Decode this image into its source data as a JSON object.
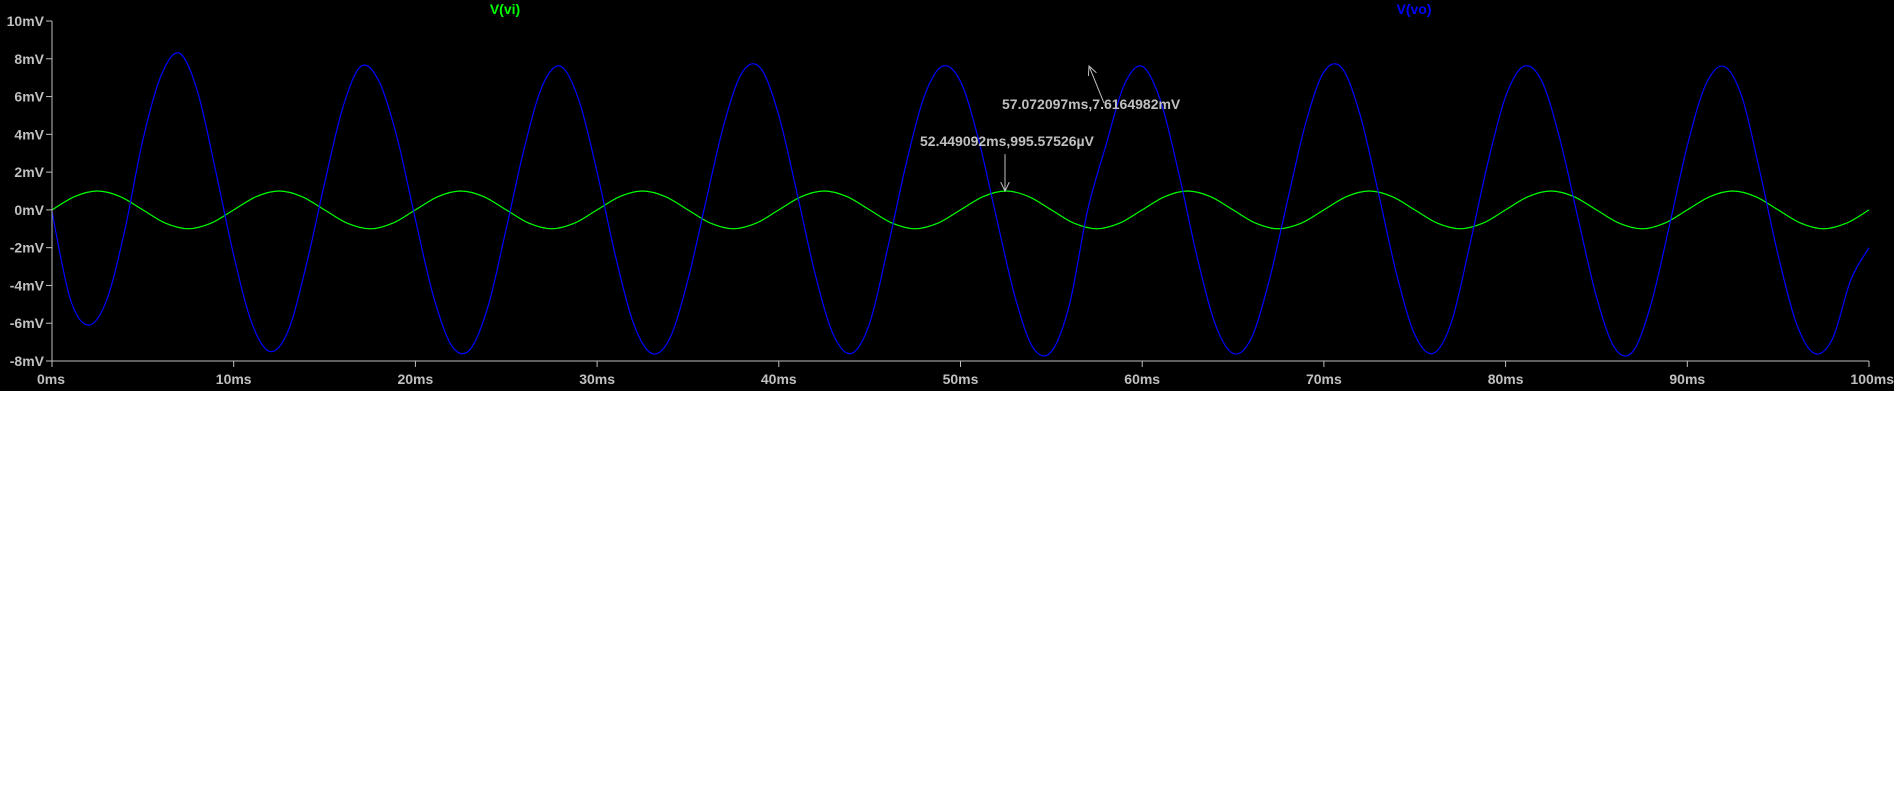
{
  "window": {
    "background": "#000000",
    "below_plot_background": "#ffffff"
  },
  "chart_data": {
    "type": "line",
    "title": "",
    "xlabel": "",
    "ylabel": "",
    "x_unit": "ms",
    "y_unit": "mV",
    "xlim": [
      0,
      100
    ],
    "ylim": [
      -8,
      10
    ],
    "grid": false,
    "axis_color": "#c0c0c0",
    "tick_label_color": "#c0c0c0",
    "x_ticks": [
      {
        "value": 0,
        "label": "0ms"
      },
      {
        "value": 10,
        "label": "10ms"
      },
      {
        "value": 20,
        "label": "20ms"
      },
      {
        "value": 30,
        "label": "30ms"
      },
      {
        "value": 40,
        "label": "40ms"
      },
      {
        "value": 50,
        "label": "50ms"
      },
      {
        "value": 60,
        "label": "60ms"
      },
      {
        "value": 70,
        "label": "70ms"
      },
      {
        "value": 80,
        "label": "80ms"
      },
      {
        "value": 90,
        "label": "90ms"
      },
      {
        "value": 100,
        "label": "100ms"
      }
    ],
    "y_ticks": [
      {
        "value": 10,
        "label": "10mV"
      },
      {
        "value": 8,
        "label": "8mV"
      },
      {
        "value": 6,
        "label": "6mV"
      },
      {
        "value": 4,
        "label": "4mV"
      },
      {
        "value": 2,
        "label": "2mV"
      },
      {
        "value": 0,
        "label": "0mV"
      },
      {
        "value": -2,
        "label": "-2mV"
      },
      {
        "value": -4,
        "label": "-4mV"
      },
      {
        "value": -6,
        "label": "-6mV"
      },
      {
        "value": -8,
        "label": "-8mV"
      }
    ],
    "legend": "top",
    "series": [
      {
        "name": "V(vi)",
        "color": "#00ff00",
        "x": [
          0,
          1.25,
          2.5,
          3.75,
          5,
          6.25,
          7.5,
          8.75,
          10,
          11.25,
          12.5,
          13.75,
          15,
          16.25,
          17.5,
          18.75,
          20,
          21.25,
          22.5,
          23.75,
          25,
          26.25,
          27.5,
          28.75,
          30,
          31.25,
          32.5,
          33.75,
          35,
          36.25,
          37.5,
          38.75,
          40,
          41.25,
          42.5,
          43.75,
          45,
          46.25,
          47.5,
          48.75,
          50,
          51.25,
          52.5,
          53.75,
          55,
          56.25,
          57.5,
          58.75,
          60,
          61.25,
          62.5,
          63.75,
          65,
          66.25,
          67.5,
          68.75,
          70,
          71.25,
          72.5,
          73.75,
          75,
          76.25,
          77.5,
          78.75,
          80,
          81.25,
          82.5,
          83.75,
          85,
          86.25,
          87.5,
          88.75,
          90,
          91.25,
          92.5,
          93.75,
          95,
          96.25,
          97.5,
          98.75,
          100
        ],
        "y": [
          0,
          0.707,
          1.0,
          0.707,
          0,
          -0.707,
          -1.0,
          -0.707,
          0,
          0.707,
          1.0,
          0.707,
          0,
          -0.707,
          -1.0,
          -0.707,
          0,
          0.707,
          1.0,
          0.707,
          0,
          -0.707,
          -1.0,
          -0.707,
          0,
          0.707,
          1.0,
          0.707,
          0,
          -0.707,
          -1.0,
          -0.707,
          0,
          0.707,
          1.0,
          0.707,
          0,
          -0.707,
          -1.0,
          -0.707,
          0,
          0.707,
          1.0,
          0.707,
          0,
          -0.707,
          -1.0,
          -0.707,
          0,
          0.707,
          1.0,
          0.707,
          0,
          -0.707,
          -1.0,
          -0.707,
          0,
          0.707,
          1.0,
          0.707,
          0,
          -0.707,
          -1.0,
          -0.707,
          0,
          0.707,
          1.0,
          0.707,
          0,
          -0.707,
          -1.0,
          -0.707,
          0,
          0.707,
          1.0,
          0.707,
          0,
          -0.707,
          -1.0,
          -0.707,
          0
        ]
      },
      {
        "name": "V(vo)",
        "color": "#0000ff",
        "x": [
          0,
          1,
          2,
          3,
          4,
          5,
          6,
          7,
          8,
          9,
          10,
          11,
          12,
          13,
          14,
          15,
          16,
          17,
          18,
          19,
          20,
          21,
          22,
          23,
          24,
          25,
          26,
          27,
          28,
          29,
          30,
          31,
          32,
          33,
          34,
          35,
          36,
          37,
          38,
          39,
          40,
          41,
          42,
          43,
          44,
          45,
          46,
          47,
          48,
          49,
          50,
          51,
          52,
          53,
          54,
          55,
          56,
          57,
          58,
          59,
          60,
          61,
          62,
          63,
          64,
          65,
          66,
          67,
          68,
          69,
          70,
          71,
          72,
          73,
          74,
          75,
          76,
          77,
          78,
          79,
          80,
          81,
          82,
          83,
          84,
          85,
          86,
          87,
          88,
          89,
          90,
          91,
          92,
          93,
          94,
          95,
          96,
          97,
          98,
          99,
          100
        ],
        "y": [
          -0.1,
          -4.7,
          -6.1,
          -4.8,
          -1.1,
          3.7,
          7.1,
          8.3,
          6.3,
          2.1,
          -2.4,
          -6.0,
          -7.5,
          -6.4,
          -2.9,
          1.4,
          5.4,
          7.6,
          6.8,
          3.8,
          -0.5,
          -4.6,
          -7.2,
          -7.4,
          -5.1,
          -1.0,
          3.3,
          6.6,
          7.6,
          5.8,
          2.0,
          -2.4,
          -6.0,
          -7.6,
          -6.8,
          -3.7,
          0.5,
          4.6,
          7.3,
          7.5,
          5.0,
          0.9,
          -3.4,
          -6.6,
          -7.6,
          -6.0,
          -2.0,
          2.4,
          6.0,
          7.6,
          6.8,
          3.7,
          -0.5,
          -4.6,
          -7.3,
          -7.5,
          -5.0,
          0,
          3.4,
          6.6,
          7.6,
          5.8,
          2.0,
          -2.4,
          -6.0,
          -7.6,
          -6.8,
          -3.7,
          0.5,
          4.6,
          7.3,
          7.5,
          5.0,
          0.9,
          -3.4,
          -6.6,
          -7.6,
          -6.0,
          -2.0,
          2.4,
          6.0,
          7.6,
          6.8,
          3.7,
          -0.5,
          -4.6,
          -7.3,
          -7.5,
          -5.0,
          -0.9,
          3.4,
          6.6,
          7.6,
          6.0,
          2.0,
          -2.4,
          -6.0,
          -7.6,
          -6.8,
          -3.7,
          -2.0
        ]
      }
    ],
    "annotations": [
      {
        "text": "57.072097ms,7.6164982mV",
        "x": 57.072097,
        "y": 7.6164982,
        "color": "#c0c0c0"
      },
      {
        "text": "52.449092ms,995.57526µV",
        "x": 52.449092,
        "y": 0.99557526,
        "color": "#c0c0c0"
      }
    ]
  }
}
